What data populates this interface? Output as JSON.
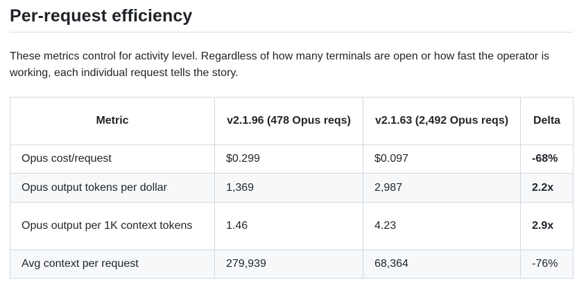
{
  "section": {
    "heading": "Per-request efficiency",
    "description": "These metrics control for activity level. Regardless of how many terminals are open or how fast the operator is working, each individual request tells the story."
  },
  "table": {
    "headers": [
      "Metric",
      "v2.1.96 (478 Opus reqs)",
      "v2.1.63 (2,492 Opus reqs)",
      "Delta"
    ],
    "rows": [
      {
        "metric": "Opus cost/request",
        "v2196": "$0.299",
        "v2163": "$0.097",
        "delta": "-68%",
        "delta_bold": true
      },
      {
        "metric": "Opus output tokens per dollar",
        "v2196": "1,369",
        "v2163": "2,987",
        "delta": "2.2x",
        "delta_bold": true
      },
      {
        "metric": "Opus output per 1K context tokens",
        "v2196": "1.46",
        "v2163": "4.23",
        "delta": "2.9x",
        "delta_bold": true
      },
      {
        "metric": "Avg context per request",
        "v2196": "279,939",
        "v2163": "68,364",
        "delta": "-76%",
        "delta_bold": false
      }
    ]
  }
}
